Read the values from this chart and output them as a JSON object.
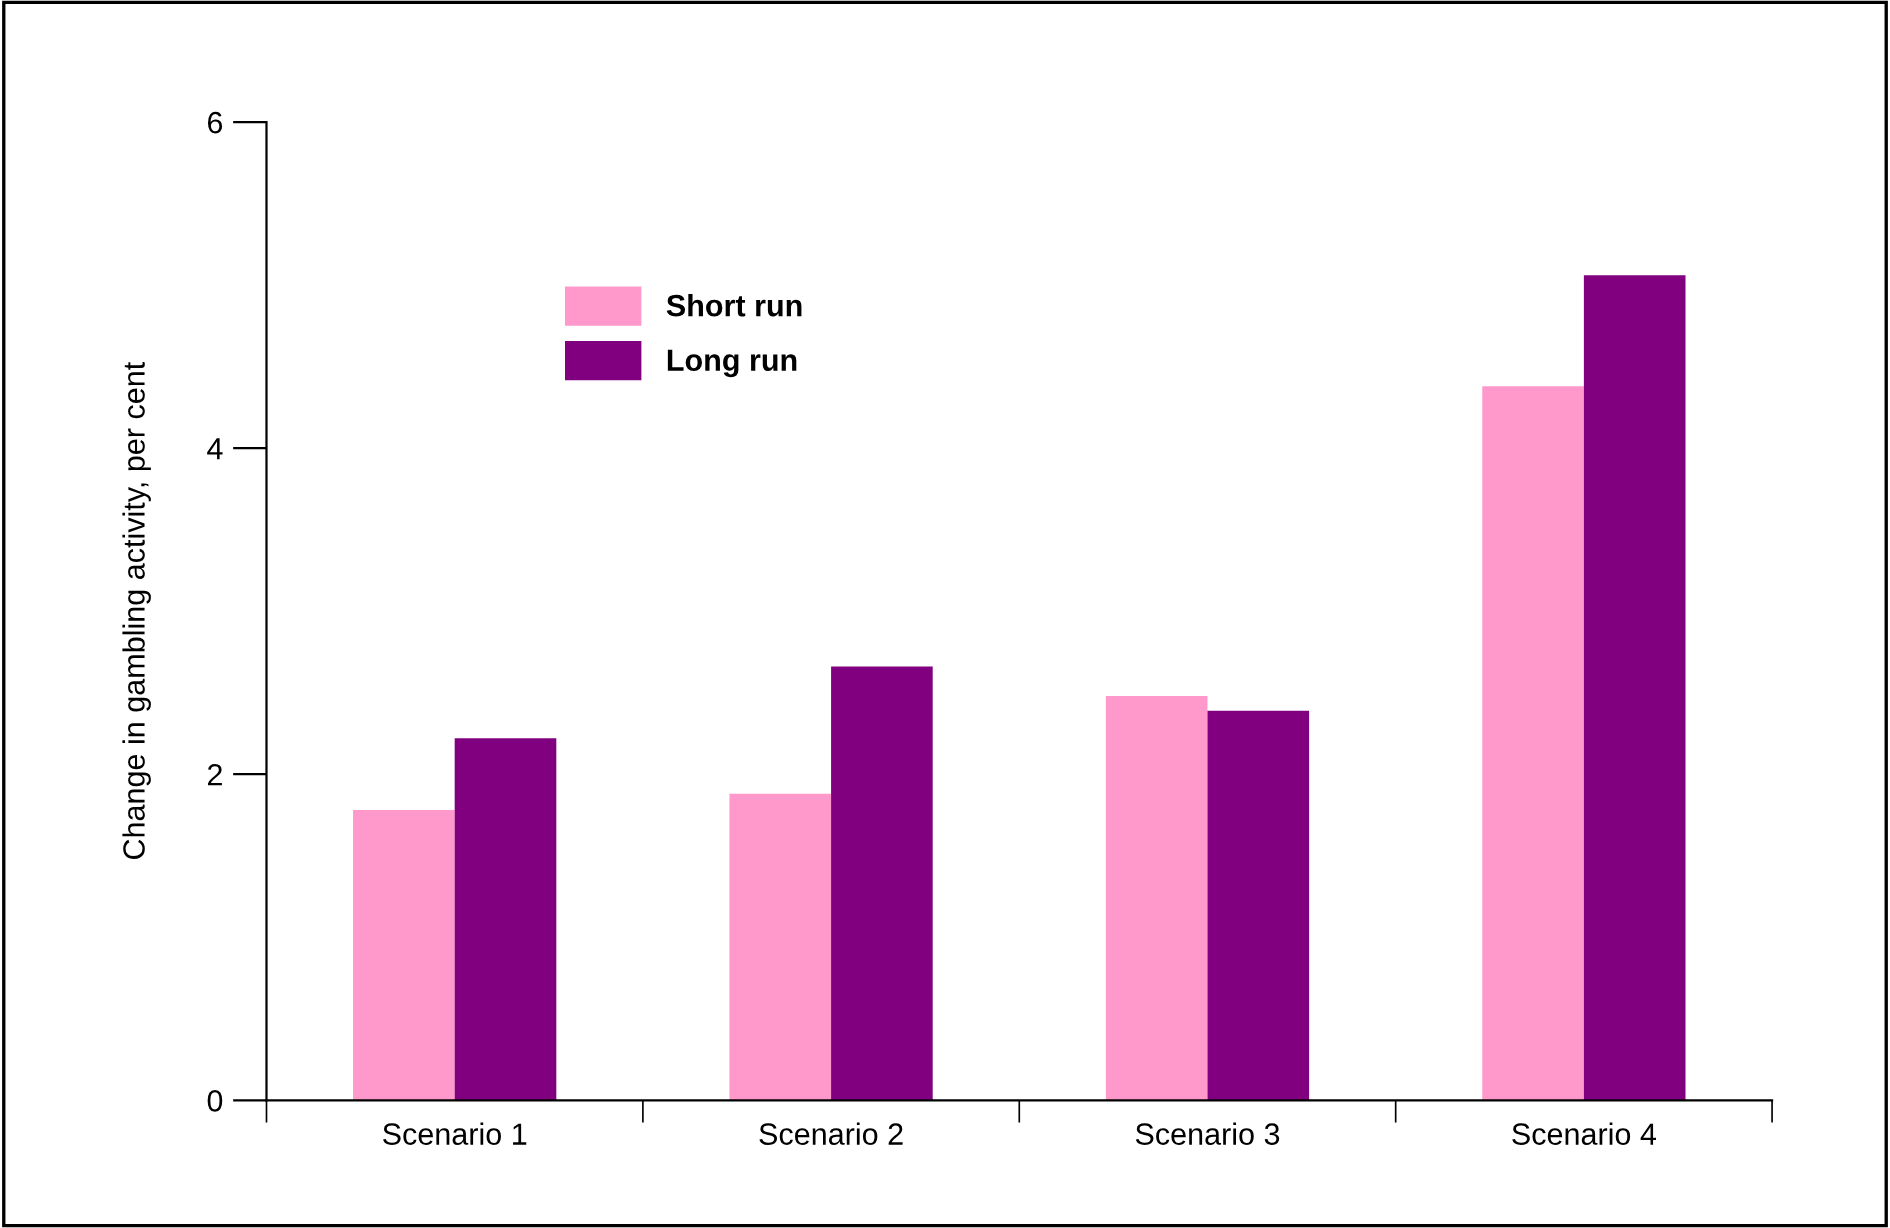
{
  "chart_data": {
    "type": "bar",
    "ylabel": "Change in gambling activity, per cent",
    "categories": [
      "Scenario 1",
      "Scenario 2",
      "Scenario 3",
      "Scenario 4"
    ],
    "series": [
      {
        "name": "Short run",
        "color": "#ff99cc",
        "values": [
          1.78,
          1.88,
          2.48,
          4.38
        ]
      },
      {
        "name": "Long run",
        "color": "#800080",
        "values": [
          2.22,
          2.66,
          2.39,
          5.06
        ]
      }
    ],
    "ylim": [
      0,
      6
    ],
    "yticks": [
      0,
      2,
      4,
      6
    ],
    "grid": false,
    "legend": "top left"
  }
}
